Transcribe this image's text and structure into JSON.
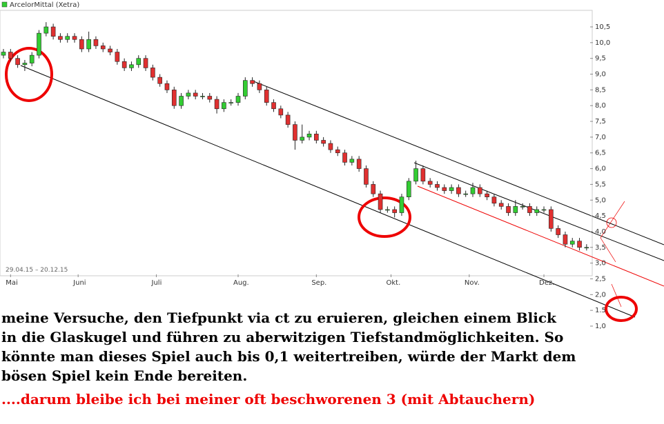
{
  "chart_data": {
    "type": "candlestick",
    "title": "ArcelorMittal (Xetra)",
    "period": "29.04.15 – 20.12.15",
    "up_color": "#33cc33",
    "down_color": "#e03030",
    "x": [
      0,
      2,
      4,
      6,
      8,
      10,
      12,
      14,
      16,
      18,
      20,
      22,
      24,
      26,
      28,
      30,
      32,
      34,
      36,
      38,
      40,
      42,
      44,
      46,
      48,
      50,
      52,
      54,
      56,
      58,
      60,
      62,
      64,
      66,
      68,
      70,
      72,
      74,
      76,
      78,
      80,
      82,
      84,
      86,
      88,
      90,
      92,
      94,
      96,
      98,
      100,
      102,
      104,
      106,
      108,
      110,
      112,
      114,
      116,
      118,
      120,
      122,
      124,
      126,
      128,
      130,
      132,
      134,
      136,
      138,
      140,
      142,
      144,
      146,
      148,
      150,
      152,
      154,
      156,
      158,
      160,
      162,
      164
    ],
    "open": [
      9.6,
      9.7,
      9.5,
      9.3,
      9.35,
      9.6,
      10.3,
      10.5,
      10.2,
      10.1,
      10.2,
      10.1,
      9.8,
      10.1,
      9.9,
      9.8,
      9.7,
      9.4,
      9.2,
      9.3,
      9.5,
      9.2,
      8.9,
      8.7,
      8.5,
      8.0,
      8.3,
      8.4,
      8.3,
      8.3,
      8.2,
      7.9,
      8.1,
      8.1,
      8.3,
      8.8,
      8.7,
      8.5,
      8.1,
      7.9,
      7.7,
      7.4,
      6.9,
      7.0,
      7.1,
      6.9,
      6.8,
      6.6,
      6.5,
      6.2,
      6.3,
      6.0,
      5.5,
      5.2,
      4.7,
      4.7,
      4.6,
      5.1,
      5.6,
      6.0,
      5.6,
      5.5,
      5.4,
      5.3,
      5.4,
      5.2,
      5.2,
      5.4,
      5.2,
      5.1,
      4.9,
      4.8,
      4.6,
      4.8,
      4.8,
      4.6,
      4.7,
      4.7,
      4.1,
      3.9,
      3.6,
      3.7,
      3.5
    ],
    "high": [
      9.8,
      9.8,
      9.6,
      9.45,
      9.7,
      10.4,
      10.65,
      10.6,
      10.3,
      10.3,
      10.3,
      10.2,
      10.35,
      10.2,
      10.0,
      9.9,
      9.8,
      9.5,
      9.4,
      9.6,
      9.6,
      9.3,
      9.0,
      8.8,
      8.6,
      8.4,
      8.5,
      8.5,
      8.4,
      8.4,
      8.3,
      8.2,
      8.2,
      8.4,
      8.9,
      8.9,
      8.8,
      8.6,
      8.2,
      8.0,
      7.8,
      7.5,
      7.4,
      7.2,
      7.2,
      7.0,
      6.9,
      6.7,
      6.6,
      6.4,
      6.4,
      6.1,
      5.6,
      5.3,
      4.8,
      4.8,
      5.2,
      5.7,
      6.25,
      6.1,
      5.7,
      5.6,
      5.5,
      5.5,
      5.5,
      5.3,
      5.55,
      5.5,
      5.3,
      5.2,
      5.0,
      4.9,
      5.0,
      4.9,
      4.9,
      4.8,
      4.8,
      4.8,
      4.2,
      4.0,
      3.8,
      3.8,
      3.6
    ],
    "low": [
      9.5,
      9.4,
      9.2,
      9.1,
      9.25,
      9.5,
      10.2,
      10.1,
      10.0,
      10.0,
      10.0,
      9.7,
      9.7,
      9.8,
      9.7,
      9.6,
      9.3,
      9.1,
      9.1,
      9.2,
      9.1,
      8.8,
      8.6,
      8.4,
      7.9,
      7.9,
      8.2,
      8.2,
      8.2,
      8.1,
      7.75,
      7.8,
      8.0,
      8.0,
      8.2,
      8.6,
      8.4,
      8.0,
      7.8,
      7.6,
      7.3,
      6.6,
      6.8,
      6.9,
      6.8,
      6.7,
      6.5,
      6.4,
      6.1,
      6.1,
      5.9,
      5.4,
      5.1,
      4.6,
      4.6,
      4.45,
      4.5,
      5.0,
      5.5,
      5.5,
      5.4,
      5.3,
      5.2,
      5.2,
      5.1,
      5.1,
      5.1,
      5.1,
      5.0,
      4.8,
      4.7,
      4.5,
      4.5,
      4.7,
      4.5,
      4.5,
      4.6,
      4.0,
      3.8,
      3.5,
      3.5,
      3.4,
      3.4
    ],
    "close": [
      9.7,
      9.5,
      9.3,
      9.35,
      9.6,
      10.3,
      10.5,
      10.2,
      10.1,
      10.2,
      10.1,
      9.8,
      10.1,
      9.9,
      9.8,
      9.7,
      9.4,
      9.2,
      9.3,
      9.5,
      9.2,
      8.9,
      8.7,
      8.5,
      8.0,
      8.3,
      8.4,
      8.3,
      8.3,
      8.2,
      7.9,
      8.1,
      8.1,
      8.3,
      8.8,
      8.7,
      8.5,
      8.1,
      7.9,
      7.7,
      7.4,
      6.9,
      7.0,
      7.1,
      6.9,
      6.8,
      6.6,
      6.5,
      6.2,
      6.3,
      6.0,
      5.5,
      5.2,
      4.7,
      4.7,
      4.6,
      5.1,
      5.6,
      6.0,
      5.6,
      5.5,
      5.4,
      5.3,
      5.4,
      5.2,
      5.2,
      5.4,
      5.2,
      5.1,
      4.9,
      4.8,
      4.6,
      4.8,
      4.8,
      4.6,
      4.7,
      4.7,
      4.1,
      3.9,
      3.6,
      3.7,
      3.5,
      3.5
    ],
    "xlim": [
      0,
      165
    ],
    "xticks": [
      {
        "value": 2,
        "label": "Mai"
      },
      {
        "value": 21,
        "label": "Juni"
      },
      {
        "value": 43,
        "label": "Juli"
      },
      {
        "value": 66,
        "label": "Aug."
      },
      {
        "value": 88,
        "label": "Sep."
      },
      {
        "value": 109,
        "label": "Okt."
      },
      {
        "value": 131,
        "label": "Nov."
      },
      {
        "value": 152,
        "label": "Dez."
      }
    ],
    "ylim": [
      1.0,
      10.5
    ],
    "yticks": [
      {
        "value": 10.5,
        "label": "10,5"
      },
      {
        "value": 10.0,
        "label": "10,0"
      },
      {
        "value": 9.5,
        "label": "9,5"
      },
      {
        "value": 9.0,
        "label": "9,0"
      },
      {
        "value": 8.5,
        "label": "8,5"
      },
      {
        "value": 8.0,
        "label": "8,0"
      },
      {
        "value": 7.5,
        "label": "7,5"
      },
      {
        "value": 7.0,
        "label": "7,0"
      },
      {
        "value": 6.5,
        "label": "6,5"
      },
      {
        "value": 6.0,
        "label": "6,0"
      },
      {
        "value": 5.5,
        "label": "5,5"
      },
      {
        "value": 5.0,
        "label": "5,0"
      },
      {
        "value": 4.5,
        "label": "4,5"
      },
      {
        "value": 4.0,
        "label": "4,0"
      },
      {
        "value": 3.5,
        "label": "3,5"
      },
      {
        "value": 3.0,
        "label": "3,0"
      },
      {
        "value": 2.5,
        "label": "2,5"
      },
      {
        "value": 2.0,
        "label": "2,0"
      },
      {
        "value": 1.5,
        "label": "1.5"
      },
      {
        "value": 1.0,
        "label": "1,0"
      }
    ],
    "comment": [
      "meine Versuche, den Tiefpunkt via ct zu eruieren, gleichen einem Blick",
      "in die Glaskugel und führen zu aberwitzigen Tiefstandmöglichkeiten. So",
      "könnte man dieses Spiel auch bis 0,1 weitertreiben, würde der Markt dem",
      "bösen Spiel kein Ende bereiten."
    ],
    "conclusion": "....darum bleibe ich bei meiner oft beschworenen 3  (mit Abtauchern)"
  }
}
